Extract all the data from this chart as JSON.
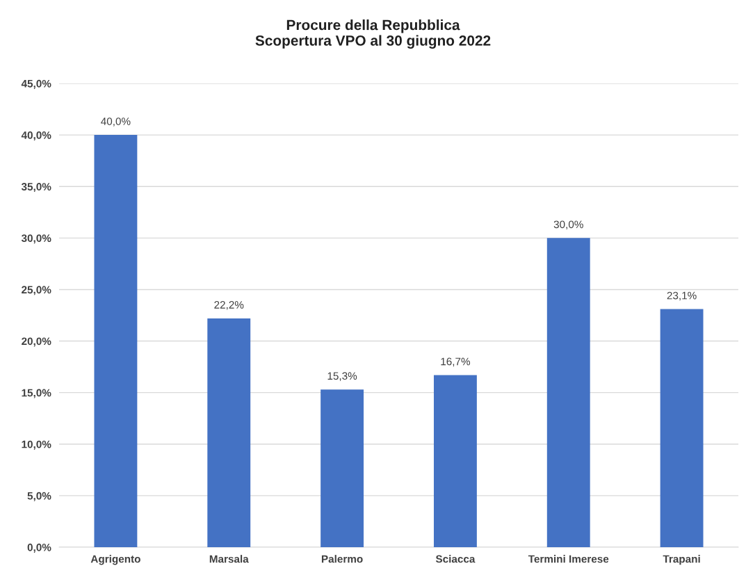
{
  "chart_data": {
    "type": "bar",
    "title": "Procure della Repubblica\nScopertura VPO al 30 giugno 2022",
    "categories": [
      "Agrigento",
      "Marsala",
      "Palermo",
      "Sciacca",
      "Termini Imerese",
      "Trapani"
    ],
    "values": [
      40.0,
      22.2,
      15.3,
      16.7,
      30.0,
      23.1
    ],
    "value_labels": [
      "40,0%",
      "22,2%",
      "15,3%",
      "16,7%",
      "30,0%",
      "23,1%"
    ],
    "color": "#4472c4",
    "ylim": [
      0,
      45
    ],
    "yticks": [
      {
        "value": 0,
        "label": "0,0%"
      },
      {
        "value": 5,
        "label": "5,0%"
      },
      {
        "value": 10,
        "label": "10,0%"
      },
      {
        "value": 15,
        "label": "15,0%"
      },
      {
        "value": 20,
        "label": "20,0%"
      },
      {
        "value": 25,
        "label": "25,0%"
      },
      {
        "value": 30,
        "label": "30,0%"
      },
      {
        "value": 35,
        "label": "35,0%"
      },
      {
        "value": 40,
        "label": "40,0%"
      },
      {
        "value": 45,
        "label": "45,0%"
      }
    ],
    "grid": "y"
  }
}
